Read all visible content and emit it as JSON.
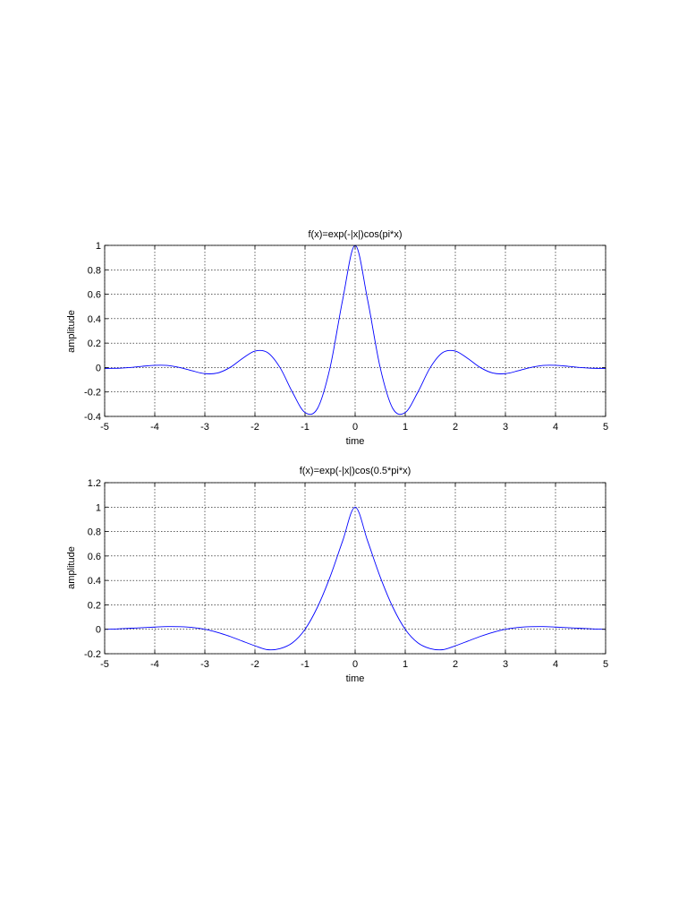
{
  "chart_data": [
    {
      "type": "line",
      "title": "f(x)=exp(-|x|)cos(pi*x)",
      "xlabel": "time",
      "ylabel": "amplitude",
      "xlim": [
        -5,
        5
      ],
      "ylim": [
        -0.4,
        1
      ],
      "xticks": [
        "-5",
        "-4",
        "-3",
        "-2",
        "-1",
        "0",
        "1",
        "2",
        "3",
        "4",
        "5"
      ],
      "yticks": [
        "-0.4",
        "-0.2",
        "0",
        "0.2",
        "0.4",
        "0.6",
        "0.8",
        "1"
      ],
      "grid": true,
      "line_color": "#0000ff",
      "series": [
        {
          "x": [
            -5,
            -4.75,
            -4.5,
            -4.25,
            -4,
            -3.75,
            -3.5,
            -3.25,
            -3,
            -2.75,
            -2.5,
            -2.25,
            -2,
            -1.75,
            -1.5,
            -1.25,
            -1,
            -0.75,
            -0.5,
            -0.25,
            0,
            0.25,
            0.5,
            0.75,
            1,
            1.25,
            1.5,
            1.75,
            2,
            2.25,
            2.5,
            2.75,
            3,
            3.25,
            3.5,
            3.75,
            4,
            4.25,
            4.5,
            4.75,
            5
          ],
          "y": [
            -0.007,
            -0.006,
            0,
            0.01,
            0.018,
            0.017,
            0,
            -0.027,
            -0.05,
            -0.045,
            0,
            0.074,
            0.135,
            0.123,
            0,
            -0.203,
            -0.368,
            -0.334,
            0,
            0.552,
            1,
            0.552,
            0,
            -0.334,
            -0.368,
            -0.203,
            0,
            0.123,
            0.135,
            0.074,
            0,
            -0.045,
            -0.05,
            -0.027,
            0,
            0.017,
            0.018,
            0.01,
            0,
            -0.006,
            -0.007
          ]
        }
      ]
    },
    {
      "type": "line",
      "title": "f(x)=exp(-|x|)cos(0.5*pi*x)",
      "xlabel": "time",
      "ylabel": "amplitude",
      "xlim": [
        -5,
        5
      ],
      "ylim": [
        -0.2,
        1.2
      ],
      "xticks": [
        "-5",
        "-4",
        "-3",
        "-2",
        "-1",
        "0",
        "1",
        "2",
        "3",
        "4",
        "5"
      ],
      "yticks": [
        "-0.2",
        "0",
        "0.2",
        "0.4",
        "0.6",
        "0.8",
        "1",
        "1.2"
      ],
      "grid": true,
      "line_color": "#0000ff",
      "series": [
        {
          "x": [
            -5,
            -4.75,
            -4.5,
            -4.25,
            -4,
            -3.75,
            -3.5,
            -3.25,
            -3,
            -2.75,
            -2.5,
            -2.25,
            -2,
            -1.75,
            -1.5,
            -1.25,
            -1,
            -0.75,
            -0.5,
            -0.25,
            0,
            0.25,
            0.5,
            0.75,
            1,
            1.25,
            1.5,
            1.75,
            2,
            2.25,
            2.5,
            2.75,
            3,
            3.25,
            3.5,
            3.75,
            4,
            4.25,
            4.5,
            4.75,
            5
          ],
          "y": [
            0,
            0.003,
            0.008,
            0.013,
            0.018,
            0.022,
            0.021,
            0.015,
            0,
            -0.025,
            -0.058,
            -0.097,
            -0.135,
            -0.167,
            -0.158,
            -0.11,
            0,
            0.183,
            0.429,
            0.722,
            1,
            0.722,
            0.429,
            0.183,
            0,
            -0.11,
            -0.158,
            -0.167,
            -0.135,
            -0.097,
            -0.058,
            -0.025,
            0,
            0.015,
            0.021,
            0.022,
            0.018,
            0.013,
            0.008,
            0.003,
            0
          ]
        }
      ]
    }
  ]
}
